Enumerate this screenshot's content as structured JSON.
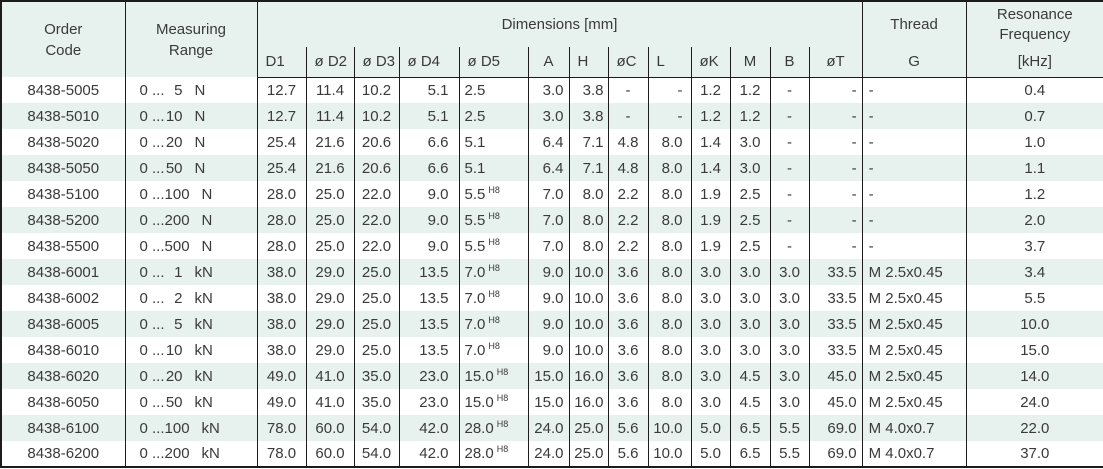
{
  "colors": {
    "header_bg": "#e7f2ee",
    "row_alt_bg": "#e7f2ee",
    "border": "#1c1c1c",
    "text": "#3a3a3a"
  },
  "header": {
    "order_code": [
      "Order",
      "Code"
    ],
    "measuring_range": [
      "Measuring",
      "Range"
    ],
    "dimensions": "Dimensions [mm]",
    "sub_columns": [
      "D1",
      "ø D2",
      "ø D3",
      "ø D4",
      "ø D5",
      "A",
      "H",
      "øC",
      "L",
      "øK",
      "M",
      "B",
      "øT"
    ],
    "thread": "Thread",
    "thread_sub": "G",
    "resonance": [
      "Resonance",
      "Frequency"
    ],
    "resonance_sub": "[kHz]"
  },
  "rows": [
    {
      "code": "8438-5005",
      "range_prefix": "0 ...",
      "range_value": "5",
      "range_unit": "N",
      "d1": "12.7",
      "d2": "11.4",
      "d3": "10.2",
      "d4": "5.1",
      "d5": "2.5",
      "d5_sup": "",
      "a": "3.0",
      "h": "3.8",
      "oc": "-",
      "l": "-",
      "ok": "1.2",
      "m": "1.2",
      "b": "-",
      "ot": "-",
      "g": "-",
      "freq": "0.4"
    },
    {
      "code": "8438-5010",
      "range_prefix": "0 ...",
      "range_value": "10",
      "range_unit": "N",
      "d1": "12.7",
      "d2": "11.4",
      "d3": "10.2",
      "d4": "5.1",
      "d5": "2.5",
      "d5_sup": "",
      "a": "3.0",
      "h": "3.8",
      "oc": "-",
      "l": "-",
      "ok": "1.2",
      "m": "1.2",
      "b": "-",
      "ot": "-",
      "g": "-",
      "freq": "0.7"
    },
    {
      "code": "8438-5020",
      "range_prefix": "0 ...",
      "range_value": "20",
      "range_unit": "N",
      "d1": "25.4",
      "d2": "21.6",
      "d3": "20.6",
      "d4": "6.6",
      "d5": "5.1",
      "d5_sup": "",
      "a": "6.4",
      "h": "7.1",
      "oc": "4.8",
      "l": "8.0",
      "ok": "1.4",
      "m": "3.0",
      "b": "-",
      "ot": "-",
      "g": "-",
      "freq": "1.0"
    },
    {
      "code": "8438-5050",
      "range_prefix": "0 ...",
      "range_value": "50",
      "range_unit": "N",
      "d1": "25.4",
      "d2": "21.6",
      "d3": "20.6",
      "d4": "6.6",
      "d5": "5.1",
      "d5_sup": "",
      "a": "6.4",
      "h": "7.1",
      "oc": "4.8",
      "l": "8.0",
      "ok": "1.4",
      "m": "3.0",
      "b": "-",
      "ot": "-",
      "g": "-",
      "freq": "1.1"
    },
    {
      "code": "8438-5100",
      "range_prefix": "0 ...",
      "range_value": "100",
      "range_unit": "N",
      "d1": "28.0",
      "d2": "25.0",
      "d3": "22.0",
      "d4": "9.0",
      "d5": "5.5",
      "d5_sup": "H8",
      "a": "7.0",
      "h": "8.0",
      "oc": "2.2",
      "l": "8.0",
      "ok": "1.9",
      "m": "2.5",
      "b": "-",
      "ot": "-",
      "g": "-",
      "freq": "1.2"
    },
    {
      "code": "8438-5200",
      "range_prefix": "0 ...",
      "range_value": "200",
      "range_unit": "N",
      "d1": "28.0",
      "d2": "25.0",
      "d3": "22.0",
      "d4": "9.0",
      "d5": "5.5",
      "d5_sup": "H8",
      "a": "7.0",
      "h": "8.0",
      "oc": "2.2",
      "l": "8.0",
      "ok": "1.9",
      "m": "2.5",
      "b": "-",
      "ot": "-",
      "g": "-",
      "freq": "2.0"
    },
    {
      "code": "8438-5500",
      "range_prefix": "0 ...",
      "range_value": "500",
      "range_unit": "N",
      "d1": "28.0",
      "d2": "25.0",
      "d3": "22.0",
      "d4": "9.0",
      "d5": "5.5",
      "d5_sup": "H8",
      "a": "7.0",
      "h": "8.0",
      "oc": "2.2",
      "l": "8.0",
      "ok": "1.9",
      "m": "2.5",
      "b": "-",
      "ot": "-",
      "g": "-",
      "freq": "3.7"
    },
    {
      "code": "8438-6001",
      "range_prefix": "0 ...",
      "range_value": "1",
      "range_unit": "kN",
      "d1": "38.0",
      "d2": "29.0",
      "d3": "25.0",
      "d4": "13.5",
      "d5": "7.0",
      "d5_sup": "H8",
      "a": "9.0",
      "h": "10.0",
      "oc": "3.6",
      "l": "8.0",
      "ok": "3.0",
      "m": "3.0",
      "b": "3.0",
      "ot": "33.5",
      "g": "M 2.5x0.45",
      "freq": "3.4"
    },
    {
      "code": "8438-6002",
      "range_prefix": "0 ...",
      "range_value": "2",
      "range_unit": "kN",
      "d1": "38.0",
      "d2": "29.0",
      "d3": "25.0",
      "d4": "13.5",
      "d5": "7.0",
      "d5_sup": "H8",
      "a": "9.0",
      "h": "10.0",
      "oc": "3.6",
      "l": "8.0",
      "ok": "3.0",
      "m": "3.0",
      "b": "3.0",
      "ot": "33.5",
      "g": "M 2.5x0.45",
      "freq": "5.5"
    },
    {
      "code": "8438-6005",
      "range_prefix": "0 ...",
      "range_value": "5",
      "range_unit": "kN",
      "d1": "38.0",
      "d2": "29.0",
      "d3": "25.0",
      "d4": "13.5",
      "d5": "7.0",
      "d5_sup": "H8",
      "a": "9.0",
      "h": "10.0",
      "oc": "3.6",
      "l": "8.0",
      "ok": "3.0",
      "m": "3.0",
      "b": "3.0",
      "ot": "33.5",
      "g": "M 2.5x0.45",
      "freq": "10.0"
    },
    {
      "code": "8438-6010",
      "range_prefix": "0 ...",
      "range_value": "10",
      "range_unit": "kN",
      "d1": "38.0",
      "d2": "29.0",
      "d3": "25.0",
      "d4": "13.5",
      "d5": "7.0",
      "d5_sup": "H8",
      "a": "9.0",
      "h": "10.0",
      "oc": "3.6",
      "l": "8.0",
      "ok": "3.0",
      "m": "3.0",
      "b": "3.0",
      "ot": "33.5",
      "g": "M 2.5x0.45",
      "freq": "15.0"
    },
    {
      "code": "8438-6020",
      "range_prefix": "0 ...",
      "range_value": "20",
      "range_unit": "kN",
      "d1": "49.0",
      "d2": "41.0",
      "d3": "35.0",
      "d4": "23.0",
      "d5": "15.0",
      "d5_sup": "H8",
      "a": "15.0",
      "h": "16.0",
      "oc": "3.6",
      "l": "8.0",
      "ok": "3.0",
      "m": "4.5",
      "b": "3.0",
      "ot": "45.0",
      "g": "M 2.5x0.45",
      "freq": "14.0"
    },
    {
      "code": "8438-6050",
      "range_prefix": "0 ...",
      "range_value": "50",
      "range_unit": "kN",
      "d1": "49.0",
      "d2": "41.0",
      "d3": "35.0",
      "d4": "23.0",
      "d5": "15.0",
      "d5_sup": "H8",
      "a": "15.0",
      "h": "16.0",
      "oc": "3.6",
      "l": "8.0",
      "ok": "3.0",
      "m": "4.5",
      "b": "3.0",
      "ot": "45.0",
      "g": "M 2.5x0.45",
      "freq": "24.0"
    },
    {
      "code": "8438-6100",
      "range_prefix": "0 ...",
      "range_value": "100",
      "range_unit": "kN",
      "d1": "78.0",
      "d2": "60.0",
      "d3": "54.0",
      "d4": "42.0",
      "d5": "28.0",
      "d5_sup": "H8",
      "a": "24.0",
      "h": "25.0",
      "oc": "5.6",
      "l": "10.0",
      "ok": "5.0",
      "m": "6.5",
      "b": "5.5",
      "ot": "69.0",
      "g": "M 4.0x0.7",
      "freq": "22.0"
    },
    {
      "code": "8438-6200",
      "range_prefix": "0 ...",
      "range_value": "200",
      "range_unit": "kN",
      "d1": "78.0",
      "d2": "60.0",
      "d3": "54.0",
      "d4": "42.0",
      "d5": "28.0",
      "d5_sup": "H8",
      "a": "24.0",
      "h": "25.0",
      "oc": "5.6",
      "l": "10.0",
      "ok": "5.0",
      "m": "6.5",
      "b": "5.5",
      "ot": "69.0",
      "g": "M 4.0x0.7",
      "freq": "37.0"
    }
  ]
}
